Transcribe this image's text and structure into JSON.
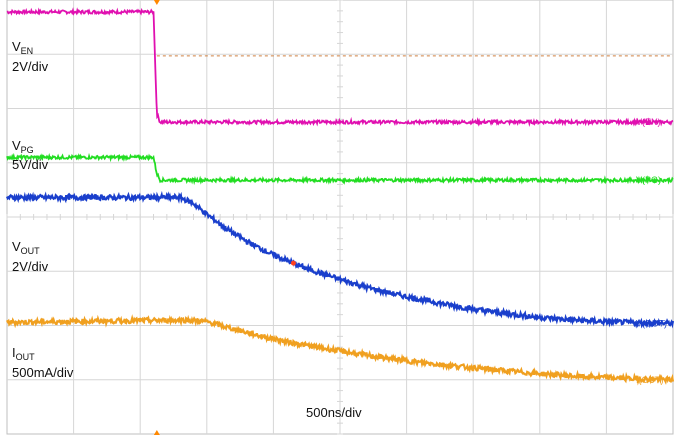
{
  "chart_data": {
    "type": "line",
    "title": "",
    "timebase_label": "500ns/div",
    "x_unit": "div",
    "xlim": [
      0,
      10
    ],
    "ylim": [
      0,
      8
    ],
    "grid": true,
    "trigger_marker_x_div": 2.25,
    "reference_line_y_div": 6.97,
    "channels": [
      {
        "key": "ven",
        "label_main": "V",
        "label_sub": "EN",
        "scale": "2V/div",
        "trace_tag": "V(EN)",
        "color": "#e010b0",
        "x": [
          0,
          2.2,
          2.25,
          2.3,
          10
        ],
        "y": [
          7.78,
          7.78,
          5.9,
          5.75,
          5.75
        ]
      },
      {
        "key": "vpg",
        "label_main": "V",
        "label_sub": "PG",
        "scale": "5V/div",
        "trace_tag": "V(PG)",
        "color": "#22dd22",
        "x": [
          0,
          2.2,
          2.25,
          2.3,
          10
        ],
        "y": [
          5.1,
          5.1,
          4.8,
          4.68,
          4.68
        ]
      },
      {
        "key": "vout",
        "label_main": "V",
        "label_sub": "OUT",
        "scale": "2V/div",
        "trace_tag": "V(OUT)",
        "color": "#1a3fcc",
        "x": [
          0,
          2.6,
          2.8,
          3.0,
          3.3,
          3.6,
          4.0,
          4.5,
          5.0,
          5.5,
          6.0,
          6.5,
          7.0,
          7.5,
          8.0,
          8.5,
          9.0,
          9.5,
          10
        ],
        "y": [
          4.36,
          4.36,
          4.25,
          4.05,
          3.78,
          3.55,
          3.3,
          3.05,
          2.85,
          2.67,
          2.53,
          2.41,
          2.3,
          2.22,
          2.15,
          2.1,
          2.07,
          2.05,
          2.04
        ]
      },
      {
        "key": "iout",
        "label_main": "I",
        "label_sub": "OUT",
        "scale": "500mA/div",
        "trace_tag": "I(OUT)",
        "color": "#f0a020",
        "x": [
          0,
          2.7,
          3.0,
          3.3,
          3.7,
          4.2,
          4.8,
          5.5,
          6.2,
          7.0,
          7.8,
          8.6,
          9.4,
          10
        ],
        "y": [
          2.06,
          2.1,
          2.07,
          1.97,
          1.84,
          1.7,
          1.57,
          1.43,
          1.32,
          1.22,
          1.13,
          1.06,
          1.02,
          1.0
        ]
      }
    ]
  }
}
